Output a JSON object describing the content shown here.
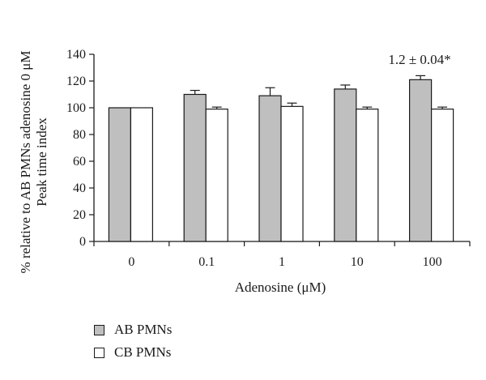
{
  "chart_data": {
    "type": "bar",
    "categories": [
      "0",
      "0.1",
      "1",
      "10",
      "100"
    ],
    "series": [
      {
        "name": "AB PMNs",
        "values": [
          100,
          110,
          109,
          114,
          121
        ],
        "errors": [
          0,
          3,
          6,
          3,
          3
        ],
        "color": "#bfbfbf"
      },
      {
        "name": "CB PMNs",
        "values": [
          100,
          99,
          101,
          99,
          99
        ],
        "errors": [
          0,
          1.5,
          2.5,
          1.5,
          1.5
        ],
        "color": "#ffffff"
      }
    ],
    "xlabel": "Adenosine (μM)",
    "ylabel_lines": [
      "% relative to AB PMNs adenosine 0 μM",
      "Peak time index"
    ],
    "ylim": [
      0,
      140
    ],
    "yticks": [
      0,
      20,
      40,
      60,
      80,
      100,
      120,
      140
    ],
    "annotation": {
      "text": "1.2 ± 0.04*",
      "category": "100"
    },
    "grid": false,
    "legend_position": "bottom-left"
  }
}
